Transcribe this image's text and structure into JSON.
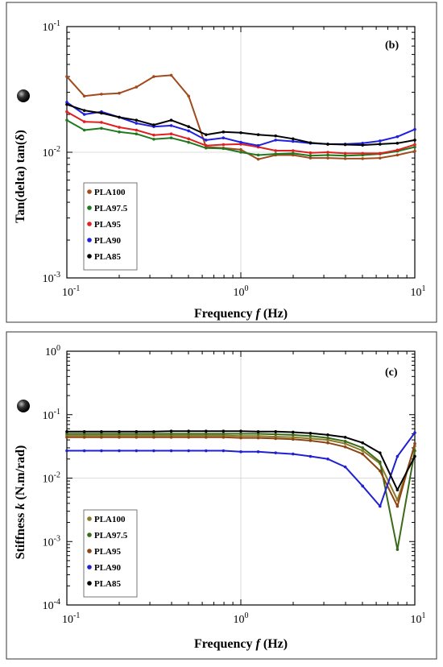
{
  "chart_data": [
    {
      "type": "line",
      "panel": "(b)",
      "xlabel_main": "Frequency ",
      "xlabel_var": "f",
      "xlabel_unit": " (Hz)",
      "ylabel": "Tan(delta) tan(δ)",
      "xscale": "log",
      "yscale": "log",
      "xlim": [
        0.1,
        10
      ],
      "ylim": [
        0.001,
        0.1
      ],
      "xticks": [
        {
          "value": 0.1,
          "base": "10",
          "exp": "-1"
        },
        {
          "value": 1,
          "base": "10",
          "exp": "0"
        },
        {
          "value": 10,
          "base": "10",
          "exp": "1"
        }
      ],
      "yticks": [
        {
          "value": 0.001,
          "base": "10",
          "exp": "-3"
        },
        {
          "value": 0.01,
          "base": "10",
          "exp": "-2"
        },
        {
          "value": 0.1,
          "base": "10",
          "exp": "-1"
        }
      ],
      "grid": "major gridlines at 10^0 and 10^-2",
      "legend_position": "lower-left",
      "x": [
        0.1,
        0.126,
        0.158,
        0.2,
        0.251,
        0.316,
        0.398,
        0.501,
        0.631,
        0.794,
        1.0,
        1.259,
        1.585,
        1.995,
        2.512,
        3.162,
        3.981,
        5.012,
        6.31,
        7.943,
        10.0
      ],
      "series": [
        {
          "name": "PLA100",
          "color": "#a04a1e",
          "values": [
            0.04,
            0.028,
            0.029,
            0.0295,
            0.033,
            0.04,
            0.041,
            0.028,
            0.011,
            0.0108,
            0.0105,
            0.0088,
            0.0095,
            0.0095,
            0.009,
            0.009,
            0.0089,
            0.0089,
            0.009,
            0.0095,
            0.0102
          ]
        },
        {
          "name": "PLA97.5",
          "color": "#1f7a1f",
          "values": [
            0.018,
            0.015,
            0.0155,
            0.0145,
            0.014,
            0.0127,
            0.013,
            0.012,
            0.0108,
            0.0107,
            0.01,
            0.0095,
            0.0097,
            0.0098,
            0.0094,
            0.0095,
            0.0094,
            0.0095,
            0.0097,
            0.0102,
            0.011
          ]
        },
        {
          "name": "PLA95",
          "color": "#e02020",
          "values": [
            0.021,
            0.0175,
            0.0173,
            0.0158,
            0.015,
            0.0137,
            0.014,
            0.0128,
            0.0113,
            0.0115,
            0.0116,
            0.011,
            0.0103,
            0.0103,
            0.0099,
            0.01,
            0.0098,
            0.0098,
            0.0098,
            0.0104,
            0.0115
          ]
        },
        {
          "name": "PLA90",
          "color": "#2020e0",
          "values": [
            0.025,
            0.02,
            0.021,
            0.019,
            0.017,
            0.016,
            0.0163,
            0.0148,
            0.0125,
            0.013,
            0.012,
            0.0113,
            0.0125,
            0.0122,
            0.0118,
            0.0116,
            0.0116,
            0.0118,
            0.0123,
            0.0133,
            0.0152
          ]
        },
        {
          "name": "PLA85",
          "color": "#000000",
          "values": [
            0.024,
            0.0215,
            0.0205,
            0.019,
            0.018,
            0.0165,
            0.018,
            0.016,
            0.0138,
            0.0145,
            0.0143,
            0.0138,
            0.0135,
            0.0128,
            0.0119,
            0.0116,
            0.0115,
            0.0114,
            0.0116,
            0.0118,
            0.0125
          ]
        }
      ]
    },
    {
      "type": "line",
      "panel": "(c)",
      "xlabel_main": "Frequency ",
      "xlabel_var": "f",
      "xlabel_unit": " (Hz)",
      "ylabel_main": "Stiffness ",
      "ylabel_var": "k",
      "ylabel_unit": " (N.m/rad)",
      "xscale": "log",
      "yscale": "log",
      "xlim": [
        0.1,
        10
      ],
      "ylim": [
        0.0001,
        1
      ],
      "xticks": [
        {
          "value": 0.1,
          "base": "10",
          "exp": "-1"
        },
        {
          "value": 1,
          "base": "10",
          "exp": "0"
        },
        {
          "value": 10,
          "base": "10",
          "exp": "1"
        }
      ],
      "yticks": [
        {
          "value": 0.0001,
          "base": "10",
          "exp": "-4"
        },
        {
          "value": 0.001,
          "base": "10",
          "exp": "-3"
        },
        {
          "value": 0.01,
          "base": "10",
          "exp": "-2"
        },
        {
          "value": 0.1,
          "base": "10",
          "exp": "-1"
        },
        {
          "value": 1,
          "base": "10",
          "exp": "0"
        }
      ],
      "grid": "major gridlines at 10^0 and 10^-2",
      "legend_position": "lower-left",
      "x": [
        0.1,
        0.126,
        0.158,
        0.2,
        0.251,
        0.316,
        0.398,
        0.501,
        0.631,
        0.794,
        1.0,
        1.259,
        1.585,
        1.995,
        2.512,
        3.162,
        3.981,
        5.012,
        6.31,
        7.943,
        10.0
      ],
      "series": [
        {
          "name": "PLA100",
          "color": "#8a7a2a",
          "values": [
            0.047,
            0.047,
            0.047,
            0.047,
            0.047,
            0.047,
            0.047,
            0.047,
            0.047,
            0.047,
            0.046,
            0.046,
            0.045,
            0.044,
            0.042,
            0.04,
            0.035,
            0.027,
            0.017,
            0.0045,
            0.032
          ]
        },
        {
          "name": "PLA97.5",
          "color": "#3a6a1a",
          "values": [
            0.05,
            0.05,
            0.05,
            0.05,
            0.05,
            0.05,
            0.05,
            0.05,
            0.05,
            0.05,
            0.05,
            0.05,
            0.049,
            0.048,
            0.046,
            0.043,
            0.038,
            0.03,
            0.018,
            0.00075,
            0.027
          ]
        },
        {
          "name": "PLA95",
          "color": "#8b4513",
          "values": [
            0.044,
            0.044,
            0.044,
            0.044,
            0.044,
            0.044,
            0.044,
            0.044,
            0.044,
            0.044,
            0.043,
            0.043,
            0.042,
            0.041,
            0.039,
            0.036,
            0.031,
            0.024,
            0.013,
            0.0036,
            0.035
          ]
        },
        {
          "name": "PLA90",
          "color": "#2020d0",
          "values": [
            0.027,
            0.027,
            0.027,
            0.027,
            0.027,
            0.027,
            0.027,
            0.027,
            0.027,
            0.027,
            0.026,
            0.026,
            0.025,
            0.024,
            0.022,
            0.02,
            0.015,
            0.0075,
            0.0036,
            0.022,
            0.052
          ]
        },
        {
          "name": "PLA85",
          "color": "#000000",
          "values": [
            0.054,
            0.054,
            0.054,
            0.054,
            0.054,
            0.054,
            0.055,
            0.055,
            0.055,
            0.055,
            0.055,
            0.054,
            0.054,
            0.053,
            0.051,
            0.048,
            0.044,
            0.036,
            0.025,
            0.0065,
            0.022
          ]
        }
      ]
    }
  ]
}
